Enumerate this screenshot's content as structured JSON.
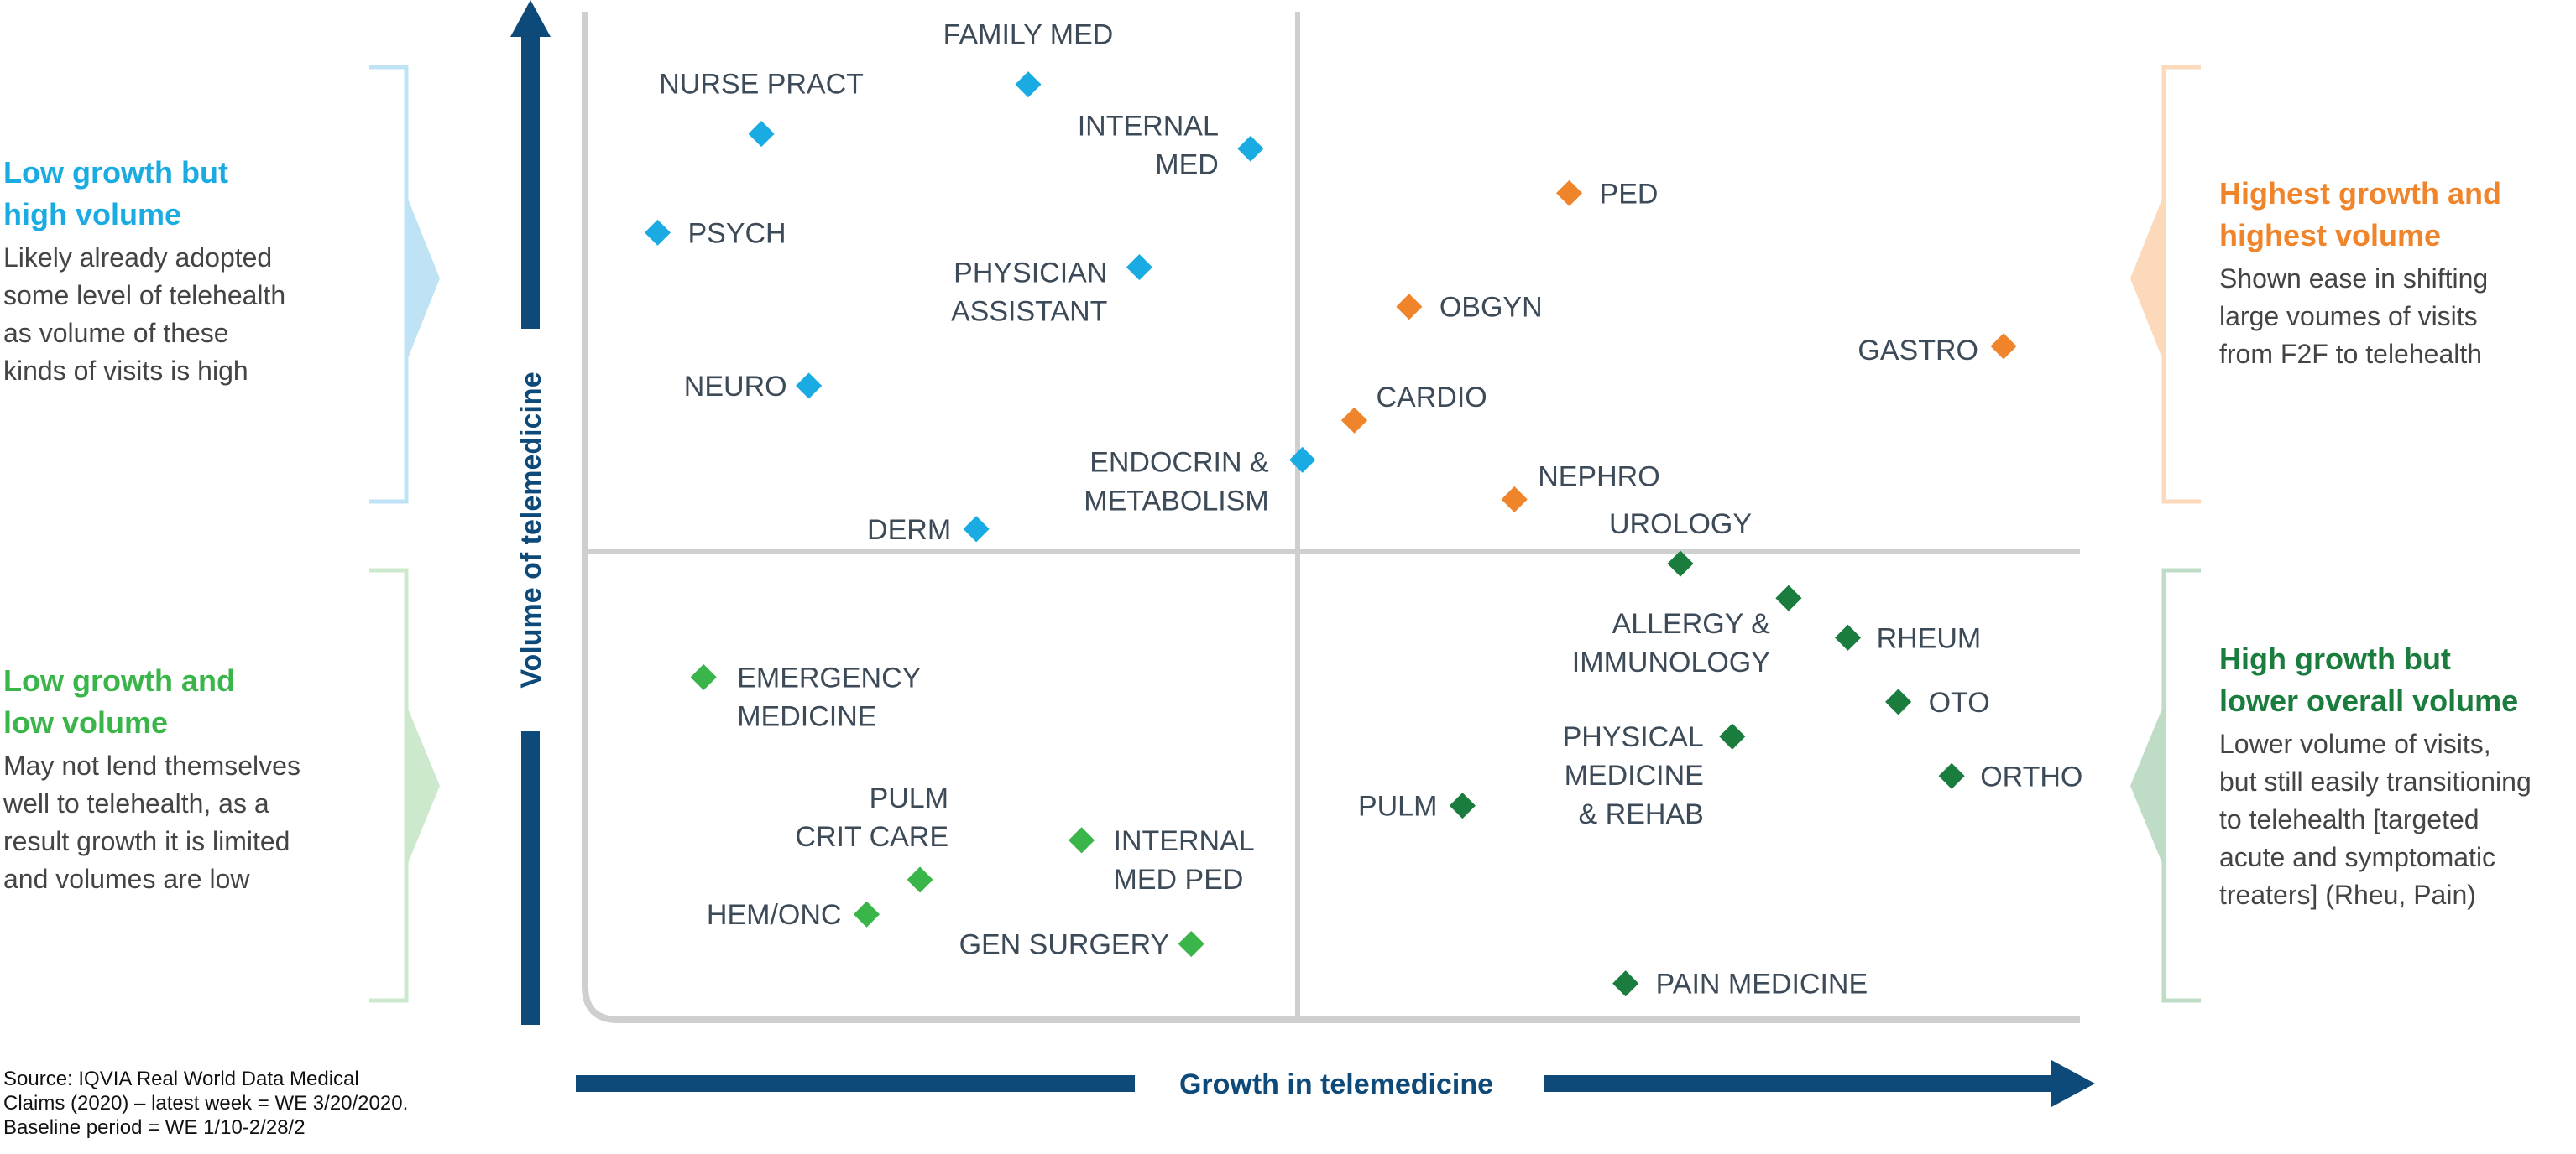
{
  "chart_data": {
    "type": "scatter",
    "xlabel": "Growth in telemedicine",
    "ylabel": "Volume of telemedicine",
    "grid": false,
    "legend": "none",
    "points": [
      {
        "label": [
          "NURSE PRACT"
        ],
        "quadrant": "low-growth-high-volume",
        "x": 0.115,
        "y": 0.89
      },
      {
        "label": [
          "FAMILY MED"
        ],
        "quadrant": "low-growth-high-volume",
        "x": 0.295,
        "y": 0.94
      },
      {
        "label": [
          "INTERNAL",
          "MED"
        ],
        "quadrant": "low-growth-high-volume",
        "x": 0.445,
        "y": 0.875
      },
      {
        "label": [
          "PSYCH"
        ],
        "quadrant": "low-growth-high-volume",
        "x": 0.045,
        "y": 0.79
      },
      {
        "label": [
          "PHYSICIAN",
          "ASSISTANT"
        ],
        "quadrant": "low-growth-high-volume",
        "x": 0.37,
        "y": 0.755
      },
      {
        "label": [
          "NEURO"
        ],
        "quadrant": "low-growth-high-volume",
        "x": 0.147,
        "y": 0.635
      },
      {
        "label": [
          "ENDOCRIN &",
          "METABOLISM"
        ],
        "quadrant": "low-growth-high-volume",
        "x": 0.48,
        "y": 0.56
      },
      {
        "label": [
          "DERM"
        ],
        "quadrant": "low-growth-high-volume",
        "x": 0.26,
        "y": 0.49
      },
      {
        "label": [
          "PED"
        ],
        "quadrant": "high-growth-high-volume",
        "x": 0.66,
        "y": 0.83
      },
      {
        "label": [
          "OBGYN"
        ],
        "quadrant": "high-growth-high-volume",
        "x": 0.552,
        "y": 0.715
      },
      {
        "label": [
          "GASTRO"
        ],
        "quadrant": "high-growth-high-volume",
        "x": 0.953,
        "y": 0.675
      },
      {
        "label": [
          "CARDIO"
        ],
        "quadrant": "high-growth-high-volume",
        "x": 0.515,
        "y": 0.6
      },
      {
        "label": [
          "NEPHRO"
        ],
        "quadrant": "high-growth-high-volume",
        "x": 0.623,
        "y": 0.52
      },
      {
        "label": [
          "UROLOGY"
        ],
        "quadrant": "high-growth-low-volume",
        "x": 0.735,
        "y": 0.455
      },
      {
        "label": [
          "ALLERGY &",
          "IMMUNOLOGY"
        ],
        "quadrant": "high-growth-low-volume",
        "x": 0.808,
        "y": 0.42
      },
      {
        "label": [
          "RHEUM"
        ],
        "quadrant": "high-growth-low-volume",
        "x": 0.848,
        "y": 0.38
      },
      {
        "label": [
          "OTO"
        ],
        "quadrant": "high-growth-low-volume",
        "x": 0.882,
        "y": 0.315
      },
      {
        "label": [
          "PHYSICAL",
          "MEDICINE",
          "& REHAB"
        ],
        "quadrant": "high-growth-low-volume",
        "x": 0.77,
        "y": 0.28
      },
      {
        "label": [
          "ORTHO"
        ],
        "quadrant": "high-growth-low-volume",
        "x": 0.918,
        "y": 0.24
      },
      {
        "label": [
          "PULM"
        ],
        "quadrant": "high-growth-low-volume",
        "x": 0.588,
        "y": 0.21
      },
      {
        "label": [
          "PAIN MEDICINE"
        ],
        "quadrant": "high-growth-low-volume",
        "x": 0.698,
        "y": 0.03
      },
      {
        "label": [
          "EMERGENCY",
          "MEDICINE"
        ],
        "quadrant": "low-growth-low-volume",
        "x": 0.076,
        "y": 0.34
      },
      {
        "label": [
          "PULM",
          "CRIT CARE"
        ],
        "quadrant": "low-growth-low-volume",
        "x": 0.222,
        "y": 0.135
      },
      {
        "label": [
          "INTERNAL",
          "MED PED"
        ],
        "quadrant": "low-growth-low-volume",
        "x": 0.331,
        "y": 0.175
      },
      {
        "label": [
          "HEM/ONC"
        ],
        "quadrant": "low-growth-low-volume",
        "x": 0.186,
        "y": 0.1
      },
      {
        "label": [
          "GEN SURGERY"
        ],
        "quadrant": "low-growth-low-volume",
        "x": 0.405,
        "y": 0.07
      }
    ]
  },
  "colors": {
    "low-growth-high-volume": "#1aabe2",
    "high-growth-high-volume": "#f0842a",
    "high-growth-low-volume": "#1a7c3d",
    "low-growth-low-volume": "#3ab54a",
    "axis": "#0d4a7a",
    "divider": "#cfcfcf"
  },
  "quadrants": {
    "top_left": {
      "title": [
        "Low growth but",
        "high volume"
      ],
      "description": [
        "Likely already adopted",
        "some level of telehealth",
        "as volume of these",
        "kinds of visits is high"
      ]
    },
    "bottom_left": {
      "title": [
        "Low growth and",
        "low volume"
      ],
      "description": [
        "May not lend themselves",
        "well to telehealth, as a",
        "result growth it is limited",
        "and volumes are low"
      ]
    },
    "top_right": {
      "title": [
        "Highest growth and",
        "highest volume"
      ],
      "description": [
        "Shown ease in shifting",
        "large voumes of visits",
        "from F2F to telehealth"
      ]
    },
    "bottom_right": {
      "title": [
        "High growth but",
        "lower overall volume"
      ],
      "description": [
        "Lower volume of visits,",
        "but still easily transitioning",
        "to telehealth [targeted",
        "acute and symptomatic",
        "treaters] (Rheu, Pain)"
      ]
    }
  },
  "source": [
    "Source: IQVIA Real World Data Medical",
    "Claims (2020) – latest week = WE 3/20/2020.",
    "Baseline period = WE 1/10-2/28/2"
  ]
}
